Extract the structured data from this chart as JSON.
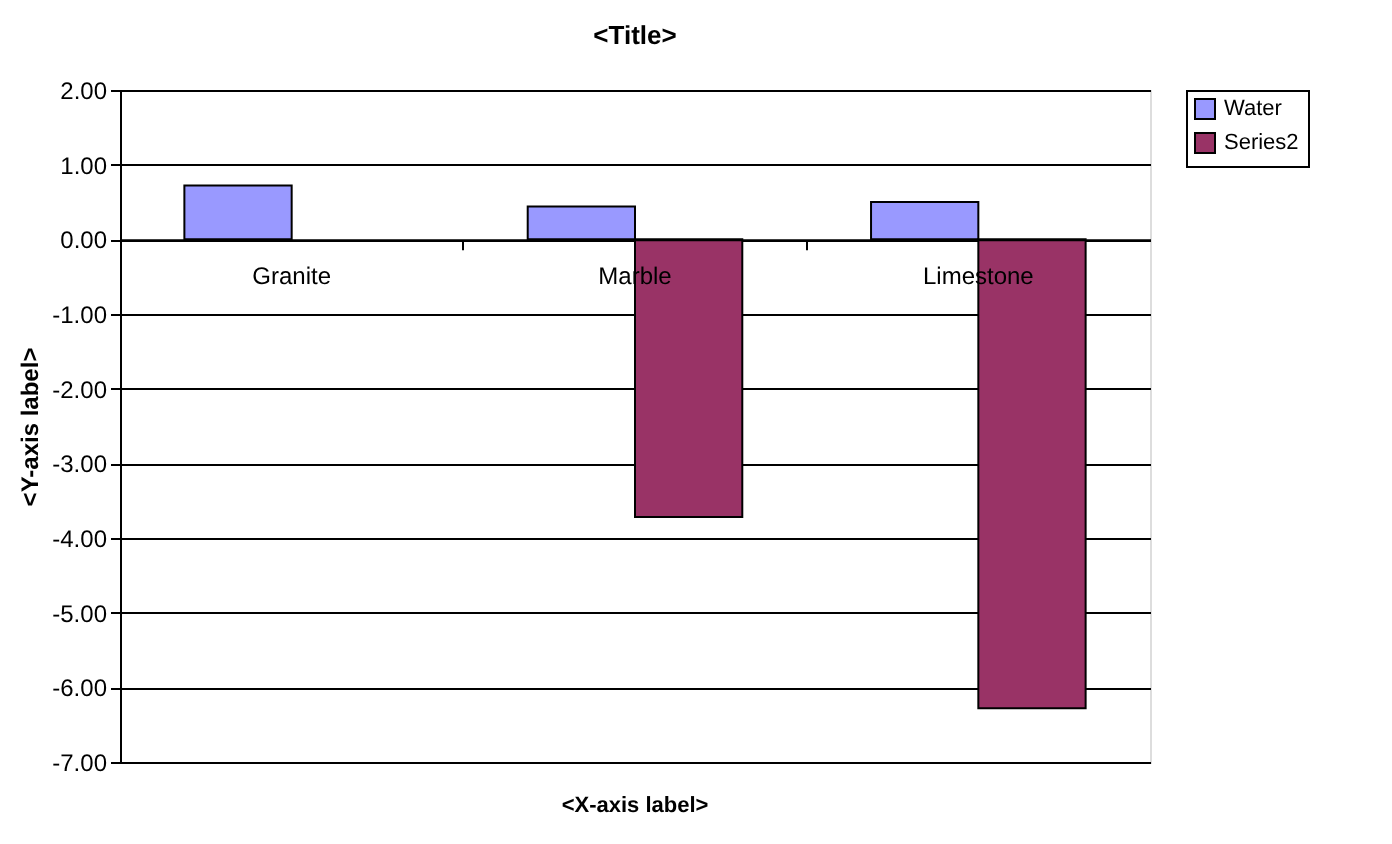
{
  "chart_data": {
    "type": "bar",
    "title": "<Title>",
    "xlabel": "<X-axis label>",
    "ylabel": "<Y-axis label>",
    "categories": [
      "Granite",
      "Marble",
      "Limestone"
    ],
    "series": [
      {
        "name": "Water",
        "color": "#9999ff",
        "values": [
          0.72,
          0.44,
          0.5
        ]
      },
      {
        "name": "Series2",
        "color": "#993366",
        "values": [
          null,
          -3.72,
          -6.28
        ]
      }
    ],
    "ylim": [
      -7,
      2
    ],
    "yticks": [
      {
        "value": -7,
        "label": "-7.00"
      },
      {
        "value": -6,
        "label": "-6.00"
      },
      {
        "value": -5,
        "label": "-5.00"
      },
      {
        "value": -4,
        "label": "-4.00"
      },
      {
        "value": -3,
        "label": "-3.00"
      },
      {
        "value": -2,
        "label": "-2.00"
      },
      {
        "value": -1,
        "label": "-1.00"
      },
      {
        "value": 0,
        "label": "0.00"
      },
      {
        "value": 1,
        "label": "1.00"
      },
      {
        "value": 2,
        "label": "2.00"
      }
    ],
    "grid": "y",
    "legend": "right"
  }
}
